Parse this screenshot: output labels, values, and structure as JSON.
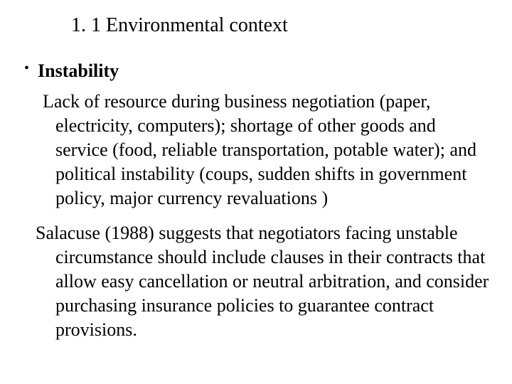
{
  "slide": {
    "title": "1. 1 Environmental context",
    "bullet_heading": "Instability",
    "paragraph1": "Lack of resource during business negotiation (paper, electricity, computers); shortage of other goods and service (food, reliable transportation, potable water); and political instability (coups, sudden shifts in government policy, major currency revaluations )",
    "paragraph2": "Salacuse (1988) suggests that negotiators facing unstable circumstance should include clauses in their contracts that allow easy cancellation or neutral arbitration, and consider purchasing insurance policies to guarantee contract provisions."
  },
  "style": {
    "background_color": "#ffffff",
    "text_color": "#000000",
    "font_family": "Times New Roman",
    "title_fontsize": 28,
    "heading_fontsize": 26,
    "body_fontsize": 26
  }
}
